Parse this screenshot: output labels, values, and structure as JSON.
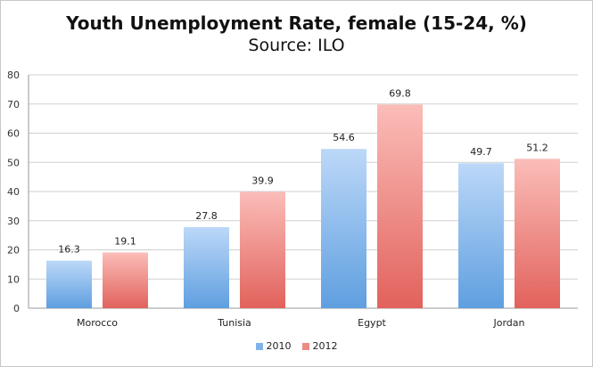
{
  "chart_data": {
    "type": "bar",
    "title": "Youth Unemployment Rate, female (15-24, %)",
    "subtitle": "Source: ILO",
    "categories": [
      "Morocco",
      "Tunisia",
      "Egypt",
      "Jordan"
    ],
    "series": [
      {
        "name": "2010",
        "values": [
          16.3,
          27.8,
          54.6,
          49.7
        ],
        "color": "#6fa8e6"
      },
      {
        "name": "2012",
        "values": [
          19.1,
          39.9,
          69.8,
          51.2
        ],
        "color": "#e8736e"
      }
    ],
    "ylim": [
      0,
      80
    ],
    "yticks": [
      0,
      10,
      20,
      30,
      40,
      50,
      60,
      70,
      80
    ],
    "grid": true,
    "legend": "bottom"
  }
}
